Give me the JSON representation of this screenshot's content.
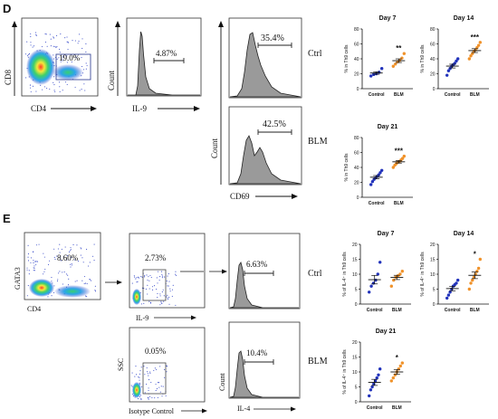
{
  "panels": {
    "D": {
      "label": "D",
      "gating": {
        "ylabel": "CD8",
        "xlabel": "CD4",
        "gate_pct": "19.0%"
      },
      "il9_histogram": {
        "ylabel": "Count",
        "xlabel": "IL-9",
        "gate_pct": "4.87%"
      },
      "cd69_histograms": {
        "ylabel": "Count",
        "xlabel": "CD69",
        "rows": [
          {
            "condition": "Ctrl",
            "gate_pct": "35.4%"
          },
          {
            "condition": "BLM",
            "gate_pct": "42.5%"
          }
        ]
      }
    },
    "E": {
      "label": "E",
      "gating": {
        "ylabel": "GATA3",
        "xlabel": "CD4",
        "gate_pct": "8.60%"
      },
      "scatter": {
        "ylabel": "SSC",
        "rows": [
          {
            "xlabel": "IL-9",
            "gate_pct": "2.73%"
          },
          {
            "xlabel": "Isotype Control",
            "gate_pct": "0.05%"
          }
        ]
      },
      "il4_histograms": {
        "ylabel": "Count",
        "xlabel": "IL-4",
        "rows": [
          {
            "condition": "Ctrl",
            "gate_pct": "6.63%"
          },
          {
            "condition": "BLM",
            "gate_pct": "10.4%"
          }
        ]
      }
    }
  },
  "colors": {
    "control": "#2233bb",
    "blm": "#f0922a",
    "hist_fill": "#9a9a9a",
    "gate_box": "#3c4a9a"
  },
  "chart_data": [
    {
      "type": "scatter",
      "panel": "D",
      "title": "Day 7",
      "ylabel": "% in Th9 cells",
      "categories": [
        "Control",
        "BLM"
      ],
      "ylim": [
        0,
        80
      ],
      "yticks": [
        0,
        20,
        40,
        60,
        80
      ],
      "series": [
        {
          "name": "Control",
          "values": [
            17,
            19,
            20,
            22,
            27
          ]
        },
        {
          "name": "BLM",
          "values": [
            30,
            33,
            36,
            38,
            41,
            47
          ]
        }
      ],
      "significance": "**"
    },
    {
      "type": "scatter",
      "panel": "D",
      "title": "Day 14",
      "ylabel": "% in Th9 cells",
      "categories": [
        "Control",
        "BLM"
      ],
      "ylim": [
        0,
        80
      ],
      "yticks": [
        0,
        20,
        40,
        60,
        80
      ],
      "series": [
        {
          "name": "Control",
          "values": [
            18,
            24,
            27,
            30,
            32,
            34,
            37,
            40
          ]
        },
        {
          "name": "BLM",
          "values": [
            40,
            44,
            47,
            50,
            52,
            55,
            58,
            62
          ]
        }
      ],
      "significance": "***"
    },
    {
      "type": "scatter",
      "panel": "D",
      "title": "Day 21",
      "ylabel": "% in Th9 cells",
      "categories": [
        "Control",
        "BLM"
      ],
      "ylim": [
        0,
        80
      ],
      "yticks": [
        0,
        20,
        40,
        60,
        80
      ],
      "series": [
        {
          "name": "Control",
          "values": [
            17,
            21,
            24,
            26,
            28,
            30,
            33,
            36
          ]
        },
        {
          "name": "BLM",
          "values": [
            40,
            43,
            45,
            47,
            48,
            50,
            52,
            55
          ]
        }
      ],
      "significance": "***"
    },
    {
      "type": "scatter",
      "panel": "E",
      "title": "Day 7",
      "ylabel": "% of IL-4⁺ in Th9 cells",
      "categories": [
        "Control",
        "BLM"
      ],
      "ylim": [
        0,
        20
      ],
      "yticks": [
        0,
        5,
        10,
        15,
        20
      ],
      "series": [
        {
          "name": "Control",
          "values": [
            4,
            6,
            7,
            8,
            10,
            14
          ]
        },
        {
          "name": "BLM",
          "values": [
            6,
            8,
            9,
            9.5,
            10,
            11
          ]
        }
      ],
      "significance": ""
    },
    {
      "type": "scatter",
      "panel": "E",
      "title": "Day 14",
      "ylabel": "% of IL-4⁺ in Th9 cells",
      "categories": [
        "Control",
        "BLM"
      ],
      "ylim": [
        0,
        20
      ],
      "yticks": [
        0,
        5,
        10,
        15,
        20
      ],
      "series": [
        {
          "name": "Control",
          "values": [
            2,
            3,
            4,
            5,
            6,
            6.5,
            7,
            8
          ]
        },
        {
          "name": "BLM",
          "values": [
            5,
            7,
            8,
            9,
            10,
            11,
            12,
            15
          ]
        }
      ],
      "significance": "*"
    },
    {
      "type": "scatter",
      "panel": "E",
      "title": "Day 21",
      "ylabel": "% of IL-4⁺ in Th9 cells",
      "categories": [
        "Control",
        "BLM"
      ],
      "ylim": [
        0,
        20
      ],
      "yticks": [
        0,
        5,
        10,
        15,
        20
      ],
      "series": [
        {
          "name": "Control",
          "values": [
            2,
            4,
            5,
            6,
            7,
            8,
            9,
            11
          ]
        },
        {
          "name": "BLM",
          "values": [
            7,
            8,
            9,
            10,
            11,
            12,
            13
          ]
        }
      ],
      "significance": "*"
    }
  ]
}
